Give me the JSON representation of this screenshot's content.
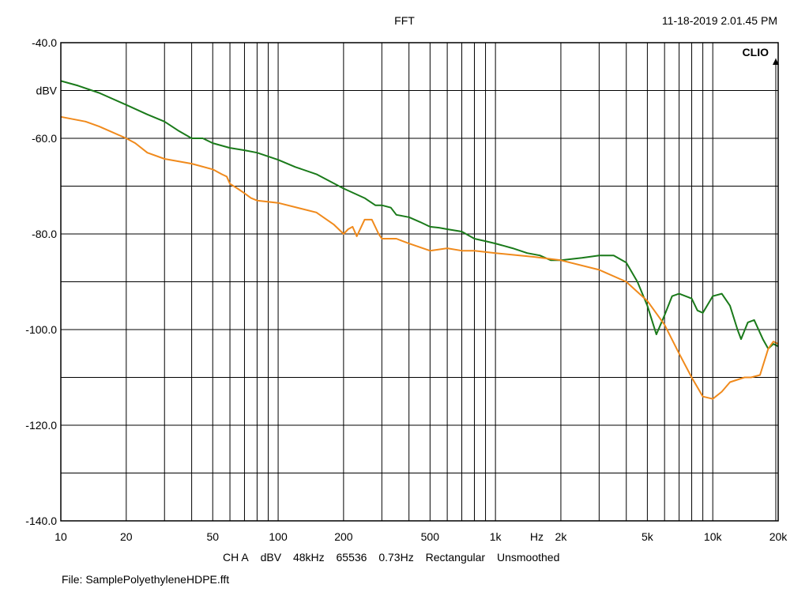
{
  "header": {
    "title": "FFT",
    "timestamp": "11-18-2019 2.01.45 PM"
  },
  "footer": {
    "info": [
      "CH A",
      "dBV",
      "48kHz",
      "65536",
      "0.73Hz",
      "Rectangular",
      "Unsmoothed"
    ],
    "file": "File: SamplePolyethyleneHDPE.fft"
  },
  "chart_data": {
    "type": "line",
    "brand": "CLIO",
    "ylabel": "dBV",
    "xlabel": "Hz",
    "xscale": "log",
    "xlim": [
      10,
      20000
    ],
    "ylim": [
      -140,
      -40
    ],
    "x_tick_labels": [
      {
        "x": 10,
        "label": "10"
      },
      {
        "x": 20,
        "label": "20"
      },
      {
        "x": 50,
        "label": "50"
      },
      {
        "x": 100,
        "label": "100"
      },
      {
        "x": 200,
        "label": "200"
      },
      {
        "x": 500,
        "label": "500"
      },
      {
        "x": 1000,
        "label": "1k"
      },
      {
        "x": 2000,
        "label": "2k"
      },
      {
        "x": 5000,
        "label": "5k"
      },
      {
        "x": 10000,
        "label": "10k"
      },
      {
        "x": 20000,
        "label": "20k"
      }
    ],
    "y_tick_labels": [
      {
        "y": -40,
        "label": "-40.0"
      },
      {
        "y": -60,
        "label": "-60.0"
      },
      {
        "y": -80,
        "label": "-80.0"
      },
      {
        "y": -100,
        "label": "-100.0"
      },
      {
        "y": -120,
        "label": "-120.0"
      },
      {
        "y": -140,
        "label": "-140.0"
      }
    ],
    "grid": true,
    "colors": {
      "green": "#1a7a1a",
      "orange": "#f08a1c"
    },
    "series": [
      {
        "color": "#1a7a1a",
        "points": [
          [
            10,
            -48
          ],
          [
            12,
            -49
          ],
          [
            15,
            -50.5
          ],
          [
            20,
            -53
          ],
          [
            25,
            -55
          ],
          [
            30,
            -56.5
          ],
          [
            35,
            -58.5
          ],
          [
            40,
            -60
          ],
          [
            45,
            -60
          ],
          [
            50,
            -61
          ],
          [
            60,
            -62
          ],
          [
            70,
            -62.5
          ],
          [
            80,
            -63
          ],
          [
            100,
            -64.5
          ],
          [
            120,
            -66
          ],
          [
            150,
            -67.5
          ],
          [
            200,
            -70.5
          ],
          [
            250,
            -72.5
          ],
          [
            280,
            -74
          ],
          [
            300,
            -74
          ],
          [
            330,
            -74.5
          ],
          [
            350,
            -76
          ],
          [
            400,
            -76.5
          ],
          [
            450,
            -77.5
          ],
          [
            500,
            -78.5
          ],
          [
            550,
            -78.7
          ],
          [
            600,
            -79
          ],
          [
            700,
            -79.5
          ],
          [
            800,
            -81
          ],
          [
            900,
            -81.5
          ],
          [
            1000,
            -82
          ],
          [
            1200,
            -83
          ],
          [
            1400,
            -84
          ],
          [
            1600,
            -84.5
          ],
          [
            1800,
            -85.5
          ],
          [
            2000,
            -85.5
          ],
          [
            2500,
            -85
          ],
          [
            3000,
            -84.5
          ],
          [
            3500,
            -84.5
          ],
          [
            4000,
            -86
          ],
          [
            4500,
            -90
          ],
          [
            5000,
            -95
          ],
          [
            5500,
            -101
          ],
          [
            6000,
            -97
          ],
          [
            6500,
            -93
          ],
          [
            7000,
            -92.5
          ],
          [
            8000,
            -93.5
          ],
          [
            8500,
            -96
          ],
          [
            9000,
            -96.5
          ],
          [
            10000,
            -93
          ],
          [
            11000,
            -92.5
          ],
          [
            12000,
            -95
          ],
          [
            13000,
            -100
          ],
          [
            13500,
            -102
          ],
          [
            14500,
            -98.5
          ],
          [
            15500,
            -98
          ],
          [
            17000,
            -102
          ],
          [
            18000,
            -104
          ],
          [
            19000,
            -103
          ],
          [
            20000,
            -103.5
          ]
        ]
      },
      {
        "color": "#f08a1c",
        "points": [
          [
            10,
            -55.5
          ],
          [
            13,
            -56.5
          ],
          [
            15,
            -57.5
          ],
          [
            20,
            -60
          ],
          [
            22,
            -61
          ],
          [
            25,
            -63
          ],
          [
            30,
            -64.3
          ],
          [
            40,
            -65.3
          ],
          [
            50,
            -66.5
          ],
          [
            55,
            -67.5
          ],
          [
            58,
            -68
          ],
          [
            60,
            -69.5
          ],
          [
            65,
            -70.5
          ],
          [
            70,
            -71.5
          ],
          [
            75,
            -72.5
          ],
          [
            80,
            -73
          ],
          [
            100,
            -73.5
          ],
          [
            150,
            -75.5
          ],
          [
            180,
            -78
          ],
          [
            200,
            -80
          ],
          [
            210,
            -79
          ],
          [
            220,
            -78.5
          ],
          [
            230,
            -80.5
          ],
          [
            250,
            -77
          ],
          [
            270,
            -77
          ],
          [
            290,
            -80
          ],
          [
            300,
            -81
          ],
          [
            350,
            -81
          ],
          [
            400,
            -82
          ],
          [
            500,
            -83.5
          ],
          [
            600,
            -83
          ],
          [
            700,
            -83.5
          ],
          [
            800,
            -83.5
          ],
          [
            1000,
            -84
          ],
          [
            1500,
            -84.8
          ],
          [
            2000,
            -85.5
          ],
          [
            3000,
            -87.5
          ],
          [
            4000,
            -90
          ],
          [
            5000,
            -94
          ],
          [
            6000,
            -99
          ],
          [
            7000,
            -105
          ],
          [
            8000,
            -110
          ],
          [
            9000,
            -114
          ],
          [
            10000,
            -114.5
          ],
          [
            11000,
            -113
          ],
          [
            12000,
            -111
          ],
          [
            14000,
            -110
          ],
          [
            15000,
            -110
          ],
          [
            16500,
            -109.5
          ],
          [
            18000,
            -104
          ],
          [
            19000,
            -102.5
          ],
          [
            20000,
            -103
          ]
        ]
      }
    ]
  }
}
